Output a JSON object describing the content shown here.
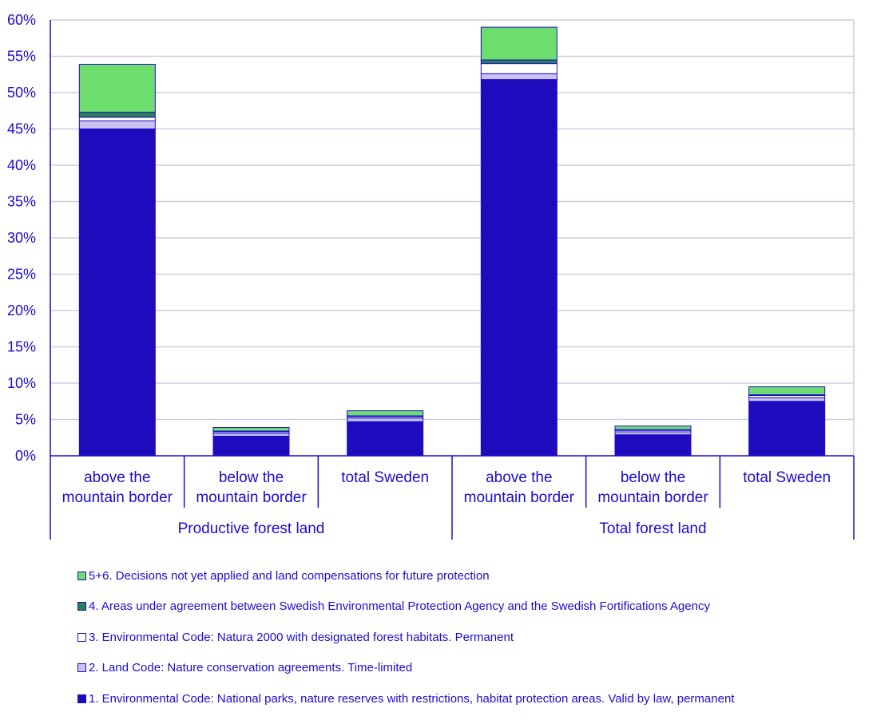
{
  "chart_data": {
    "type": "bar",
    "stacked": true,
    "groups": [
      {
        "label": "Productive forest land",
        "categories": [
          "above the\nmountain border",
          "below the\nmountain border",
          "total Sweden"
        ]
      },
      {
        "label": "Total forest land",
        "categories": [
          "above the\nmountain border",
          "below the\nmountain border",
          "total Sweden"
        ]
      }
    ],
    "series": [
      {
        "name": "1. Environmental Code: National parks, nature reserves with restrictions, habitat protection areas. Valid by law, permanent",
        "color": "#1d0bbd",
        "values": [
          45.0,
          2.7,
          4.7,
          51.8,
          2.9,
          7.5
        ]
      },
      {
        "name": "2. Land Code: Nature conservation agreements. Time-limited",
        "color": "#c9c2ee",
        "values": [
          1.1,
          0.4,
          0.5,
          0.8,
          0.4,
          0.5
        ]
      },
      {
        "name": "3. Environmental Code: Natura 2000 with designated forest habitats. Permanent",
        "color": "#ffffff",
        "values": [
          0.5,
          0.2,
          0.2,
          1.4,
          0.2,
          0.3
        ]
      },
      {
        "name": "4. Areas under agreement between Swedish Environmental Protection Agency and the Swedish Fortifications Agency",
        "color": "#2a7f52",
        "values": [
          0.7,
          0.1,
          0.1,
          0.5,
          0.1,
          0.1
        ]
      },
      {
        "name": "5+6. Decisions not yet applied and land compensations for future protection",
        "color": "#6dde6d",
        "values": [
          6.6,
          0.5,
          0.7,
          4.5,
          0.5,
          1.1
        ]
      }
    ],
    "yticks": [
      "0%",
      "5%",
      "10%",
      "15%",
      "20%",
      "25%",
      "30%",
      "35%",
      "40%",
      "45%",
      "50%",
      "55%",
      "60%"
    ],
    "ylim": [
      0,
      60
    ],
    "grid": true,
    "legend_position": "bottom",
    "legend_order": [
      4,
      3,
      2,
      1,
      0
    ]
  }
}
